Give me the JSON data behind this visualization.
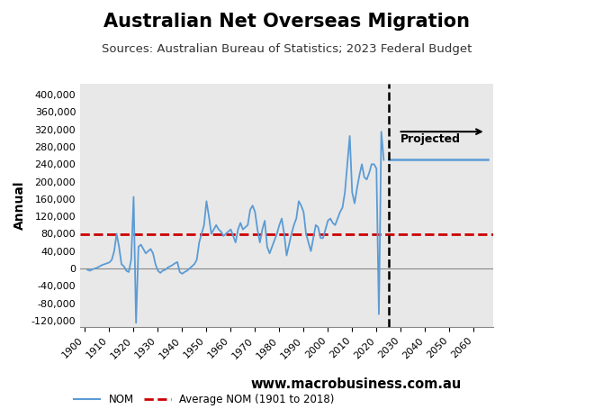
{
  "title": "Australian Net Overseas Migration",
  "subtitle": "Sources: Australian Bureau of Statistics; 2023 Federal Budget",
  "ylabel": "Annual",
  "figure_bg_color": "#ffffff",
  "plot_bg_color": "#e8e8e8",
  "title_fontsize": 15,
  "subtitle_fontsize": 9.5,
  "average_nom": 78000,
  "dashed_line_year": 2025,
  "projected_start_year": 2025,
  "projected_value": 250000,
  "projected_end_year": 2066,
  "xlim": [
    1898,
    2068
  ],
  "ylim": [
    -135000,
    425000
  ],
  "yticks": [
    -120000,
    -80000,
    -40000,
    0,
    40000,
    80000,
    120000,
    160000,
    200000,
    240000,
    280000,
    320000,
    360000,
    400000
  ],
  "xticks": [
    1900,
    1910,
    1920,
    1930,
    1940,
    1950,
    1960,
    1970,
    1980,
    1990,
    2000,
    2010,
    2020,
    2030,
    2040,
    2050,
    2060
  ],
  "line_color": "#5b9bd5",
  "avg_line_color": "#cc0000",
  "macro_box_color": "#cc0000",
  "website": "www.macrobusiness.com.au",
  "nom_data": {
    "1901": -3000,
    "1902": -5000,
    "1903": -2000,
    "1904": 0,
    "1905": 2000,
    "1906": 5000,
    "1907": 8000,
    "1908": 10000,
    "1909": 12000,
    "1910": 14000,
    "1911": 20000,
    "1912": 40000,
    "1913": 80000,
    "1914": 50000,
    "1915": 10000,
    "1916": 5000,
    "1917": -5000,
    "1918": -8000,
    "1919": 20000,
    "1920": 165000,
    "1921": -125000,
    "1922": 50000,
    "1923": 55000,
    "1924": 45000,
    "1925": 35000,
    "1926": 40000,
    "1927": 45000,
    "1928": 35000,
    "1929": 10000,
    "1930": -5000,
    "1931": -10000,
    "1932": -5000,
    "1933": -3000,
    "1934": 2000,
    "1935": 5000,
    "1936": 8000,
    "1937": 12000,
    "1938": 15000,
    "1939": -8000,
    "1940": -12000,
    "1941": -8000,
    "1942": -5000,
    "1943": 0,
    "1944": 5000,
    "1945": 10000,
    "1946": 20000,
    "1947": 60000,
    "1948": 80000,
    "1949": 100000,
    "1950": 155000,
    "1951": 120000,
    "1952": 80000,
    "1953": 90000,
    "1954": 100000,
    "1955": 90000,
    "1956": 85000,
    "1957": 75000,
    "1958": 80000,
    "1959": 85000,
    "1960": 90000,
    "1961": 75000,
    "1962": 60000,
    "1963": 90000,
    "1964": 105000,
    "1965": 90000,
    "1966": 95000,
    "1967": 100000,
    "1968": 135000,
    "1969": 145000,
    "1970": 130000,
    "1971": 90000,
    "1972": 60000,
    "1973": 90000,
    "1974": 110000,
    "1975": 50000,
    "1976": 35000,
    "1977": 50000,
    "1978": 65000,
    "1979": 80000,
    "1980": 100000,
    "1981": 115000,
    "1982": 80000,
    "1983": 30000,
    "1984": 55000,
    "1985": 80000,
    "1986": 100000,
    "1987": 115000,
    "1988": 155000,
    "1989": 145000,
    "1990": 130000,
    "1991": 80000,
    "1992": 60000,
    "1993": 40000,
    "1994": 70000,
    "1995": 100000,
    "1996": 95000,
    "1997": 70000,
    "1998": 70000,
    "1999": 90000,
    "2000": 110000,
    "2001": 115000,
    "2002": 105000,
    "2003": 100000,
    "2004": 115000,
    "2005": 130000,
    "2006": 140000,
    "2007": 175000,
    "2008": 240000,
    "2009": 305000,
    "2010": 175000,
    "2011": 150000,
    "2012": 185000,
    "2013": 215000,
    "2014": 240000,
    "2015": 210000,
    "2016": 205000,
    "2017": 220000,
    "2018": 240000,
    "2019": 240000,
    "2020": 230000,
    "2021": -105000,
    "2022": 315000,
    "2023": 250000
  }
}
